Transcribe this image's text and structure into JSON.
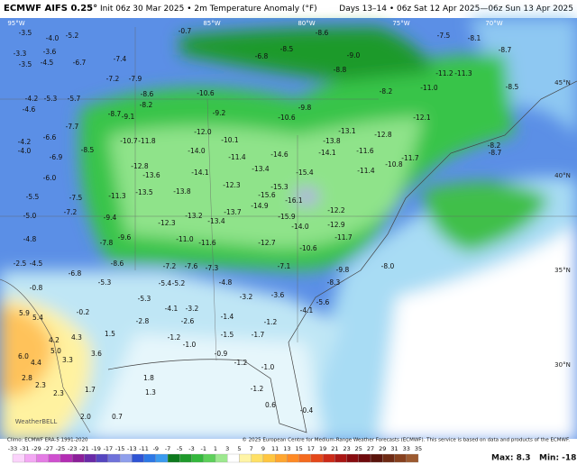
{
  "header": {
    "title": "ECMWF AIFS 0.25°",
    "subtitle": "Init 06z 30 Mar 2025 • 2m Temperature Anomaly (°F)",
    "valid": "Days 13–14 • 06z Sat 12 Apr 2025—06z Sun 13 Apr 2025"
  },
  "map": {
    "lon_labels": [
      "95°W",
      "85°W",
      "80°W",
      "75°W",
      "70°W"
    ],
    "lat_labels": [
      "45°N",
      "40°N",
      "35°N",
      "30°N"
    ],
    "labels": [
      "-3.5",
      "-4.0",
      "-5.2",
      "-3.3",
      "-3.5",
      "-3.6",
      "-4.5",
      "-6.7",
      "-7.4",
      "-7.2",
      "-7.9",
      "-8.6",
      "-8.2",
      "-4.2",
      "-5.3",
      "-5.7",
      "-4.6",
      "-8.7",
      "-9.1",
      "-7.7",
      "-6.6",
      "-4.2",
      "-4.0",
      "-6.9",
      "-8.5",
      "-10.7",
      "-11.8",
      "-12.8",
      "-13.6",
      "-14.0",
      "-14.1",
      "-13.5",
      "-13.8",
      "-11.3",
      "-12.3",
      "-13.2",
      "-13.4",
      "-13.7",
      "-14.9",
      "-15.9",
      "-16.1",
      "-15.6",
      "-15.3",
      "-15.4",
      "-14.6",
      "-14.1",
      "-13.8",
      "-13.1",
      "-12.8",
      "-11.6",
      "-11.4",
      "-10.8",
      "-11.7",
      "-12.1",
      "-11.0",
      "-11.2",
      "-11.3",
      "-7.5",
      "-8.1",
      "-8.7",
      "-8.5",
      "-8.2",
      "-8.7",
      "-8.8",
      "-8.6",
      "-9.0",
      "-8.2",
      "-9.8",
      "-10.6",
      "-12.0",
      "-10.6",
      "-9.2",
      "-10.1",
      "-11.4",
      "-13.4",
      "-12.3",
      "-14.0",
      "-12.2",
      "-12.9",
      "-11.7",
      "-12.7",
      "-10.6",
      "-9.6",
      "-11.0",
      "-11.6",
      "-7.8",
      "-9.4",
      "-7.2",
      "-7.5",
      "-6.0",
      "-5.5",
      "-5.0",
      "-4.8",
      "-2.5",
      "-4.5",
      "-6.8",
      "-8.6",
      "-7.2",
      "-7.6",
      "-7.3",
      "-7.1",
      "-9.8",
      "-8.0",
      "-8.3",
      "-5.3",
      "-5.4",
      "-5.2",
      "-4.8",
      "-5.3",
      "-3.2",
      "-3.6",
      "-5.6",
      "-4.1",
      "-4.1",
      "-3.2",
      "-2.6",
      "-2.8",
      "-1.4",
      "-1.2",
      "-1.5",
      "-1.7",
      "-1.2",
      "-1.0",
      "-0.2",
      "-0.8",
      "5.9",
      "5.4",
      "4.2",
      "5.0",
      "4.3",
      "4.4",
      "3.3",
      "6.0",
      "3.6",
      "1.5",
      "2.8",
      "2.3",
      "2.3",
      "1.7",
      "1.8",
      "1.3",
      "2.0",
      "0.7",
      "-1.0",
      "-1.2",
      "-0.9",
      "-1.2",
      "0.6",
      "-0.4",
      "-0.7",
      "-6.8",
      "-8.5"
    ]
  },
  "footer": {
    "climo": "Climo: ECMWF ERA-5 1991-2020",
    "copyright": "© 2025 European Centre for Medium-Range Weather Forecasts (ECMWF). This service is based on data and products of the ECMWF.",
    "logo": "WeatherBELL",
    "max": "Max: 8.3",
    "min": "Min: -18.6"
  },
  "colorbar": {
    "ticks": [
      -33,
      -31,
      -29,
      -27,
      -25,
      -23,
      -21,
      -19,
      -17,
      -15,
      -13,
      -11,
      -9,
      -7,
      -5,
      -3,
      -1,
      1,
      3,
      5,
      7,
      9,
      11,
      13,
      15,
      17,
      19,
      21,
      23,
      25,
      27,
      29,
      31,
      33,
      35
    ],
    "colors": [
      "#fbd3fb",
      "#f3a8f3",
      "#e47ce4",
      "#cf50cf",
      "#b32db3",
      "#8c1e99",
      "#6a2aa8",
      "#5646c0",
      "#6f72da",
      "#8f9fec",
      "#2f54d4",
      "#2d78e6",
      "#3b9bef",
      "#0e7a1e",
      "#1f9a2c",
      "#34b83d",
      "#5dd05a",
      "#9de88f",
      "#ffffff",
      "#fff4a6",
      "#ffe066",
      "#ffc640",
      "#ffa630",
      "#ff8a25",
      "#f46a1e",
      "#e4481a",
      "#cc2a18",
      "#aa1614",
      "#880c10",
      "#6e0a0c",
      "#5a140c",
      "#6e2a14",
      "#86401e",
      "#9c5a30"
    ]
  }
}
